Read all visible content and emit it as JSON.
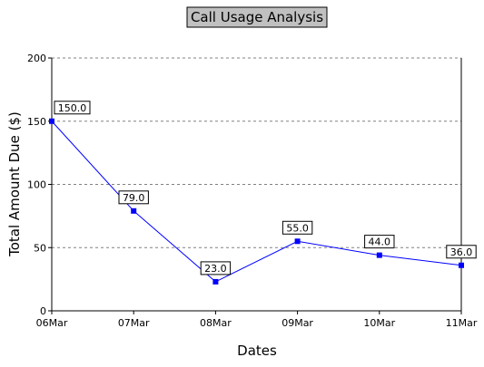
{
  "chart_data": {
    "type": "line",
    "title": "Call Usage Analysis",
    "xlabel": "Dates",
    "ylabel": "Total Amount Due ($)",
    "categories": [
      "06Mar",
      "07Mar",
      "08Mar",
      "09Mar",
      "10Mar",
      "11Mar"
    ],
    "values": [
      150.0,
      79.0,
      23.0,
      55.0,
      44.0,
      36.0
    ],
    "value_labels": [
      "150.0",
      "79.0",
      "23.0",
      "55.0",
      "44.0",
      "36.0"
    ],
    "ylim": [
      0,
      200
    ],
    "yticks": [
      0,
      50,
      100,
      150,
      200
    ],
    "ytick_labels": [
      "0",
      "50",
      "100",
      "150",
      "200"
    ],
    "grid": "horizontal dashed",
    "colors": {
      "series": "#0000ff",
      "title_background": "#c0c0c0",
      "grid": "#808080"
    }
  }
}
